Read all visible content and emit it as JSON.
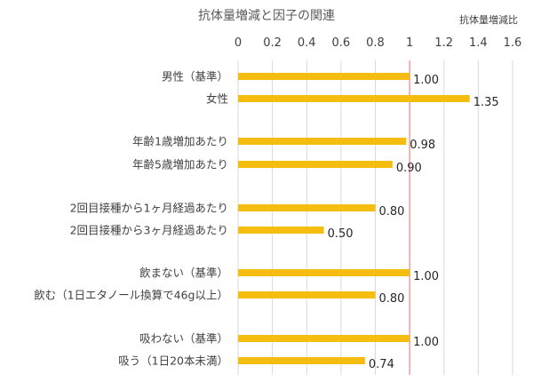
{
  "chart_data": {
    "type": "bar",
    "orientation": "horizontal",
    "title": "抗体量増減と因子の関連",
    "unit_label": "抗体量増減比",
    "xlim": [
      0,
      1.6
    ],
    "x_ticks": [
      "0",
      "0.2",
      "0.4",
      "0.6",
      "0.8",
      "1",
      "1.2",
      "1.4",
      "1.6"
    ],
    "reference_line": 1,
    "grid": true,
    "bar_color": "#f5bd0f",
    "reference_color": "#e88b8b",
    "categories": [
      "男性（基準）",
      "女性",
      "年齢1歳増加あたり",
      "年齢5歳増加あたり",
      "2回目接種から1ヶ月経過あたり",
      "2回目接種から3ヶ月経過あたり",
      "飲まない（基準）",
      "飲む（1日エタノール換算で46g以上）",
      "吸わない（基準）",
      "吸う（1日20本未満）"
    ],
    "values": [
      1.0,
      1.35,
      0.98,
      0.9,
      0.8,
      0.5,
      1.0,
      0.8,
      1.0,
      0.74
    ],
    "value_labels": [
      "1.00",
      "1.35",
      "0.98",
      "0.90",
      "0.80",
      "0.50",
      "1.00",
      "0.80",
      "1.00",
      "0.74"
    ]
  }
}
